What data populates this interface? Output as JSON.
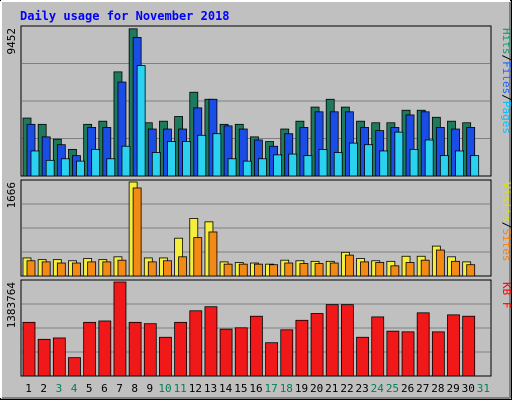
{
  "chart_data": {
    "type": "bar",
    "title": "Daily usage for November 2018",
    "categories": [
      "1",
      "2",
      "3",
      "4",
      "5",
      "6",
      "7",
      "8",
      "9",
      "10",
      "11",
      "12",
      "13",
      "14",
      "15",
      "16",
      "17",
      "18",
      "19",
      "20",
      "21",
      "22",
      "23",
      "24",
      "25",
      "26",
      "27",
      "28",
      "29",
      "30",
      "31"
    ],
    "weekend_days": [
      "3",
      "4",
      "10",
      "11",
      "17",
      "18",
      "24",
      "25",
      "31"
    ],
    "panels": [
      {
        "id": "hits",
        "max_label": "9452",
        "ylim": [
          0,
          9452
        ],
        "legend": [
          {
            "text": "Pages",
            "color": "#00c0ff"
          },
          {
            "text": "Files",
            "color": "#2060ff"
          },
          {
            "text": "Hits",
            "color": "#00a070"
          }
        ],
        "series": [
          {
            "name": "Hits",
            "color": "#1e7a5e",
            "values": [
              3700,
              3300,
              2350,
              1700,
              3300,
              3500,
              6650,
              9400,
              3400,
              3500,
              3800,
              5350,
              4900,
              3300,
              3300,
              2500,
              2200,
              3000,
              3500,
              4400,
              4900,
              4400,
              3500,
              3400,
              3400,
              4200,
              4200,
              3750,
              3500,
              3400,
              null
            ]
          },
          {
            "name": "Files",
            "color": "#1a4ce6",
            "values": [
              3300,
              2500,
              2000,
              1300,
              3100,
              3100,
              6000,
              8850,
              3000,
              3000,
              3000,
              4350,
              4900,
              3200,
              3000,
              2300,
              1900,
              2700,
              3100,
              4100,
              4100,
              4100,
              3100,
              2900,
              3100,
              3900,
              4100,
              3100,
              3000,
              3100,
              null
            ]
          },
          {
            "name": "Pages",
            "color": "#2ad2f0",
            "values": [
              1600,
              1000,
              1100,
              950,
              1700,
              1100,
              1900,
              7050,
              1500,
              2200,
              2200,
              2600,
              2700,
              1100,
              950,
              1100,
              1350,
              1400,
              1300,
              1700,
              1500,
              2100,
              2000,
              1600,
              2800,
              1700,
              2300,
              1300,
              1600,
              1300,
              null
            ]
          }
        ]
      },
      {
        "id": "visits",
        "max_label": "1666",
        "ylim": [
          0,
          1666
        ],
        "legend": [
          {
            "text": "Sites",
            "color": "#ff8000"
          },
          {
            "text": "Visits",
            "color": "#e0e000"
          }
        ],
        "series": [
          {
            "name": "Visits",
            "color": "#f4ef3c",
            "values": [
              320,
              290,
              290,
              270,
              310,
              290,
              340,
              1666,
              320,
              320,
              670,
              1020,
              960,
              250,
              240,
              230,
              210,
              280,
              270,
              260,
              260,
              420,
              310,
              270,
              260,
              350,
              350,
              530,
              340,
              250,
              null
            ]
          },
          {
            "name": "Sites",
            "color": "#f48a16",
            "values": [
              270,
              250,
              230,
              230,
              250,
              250,
              280,
              1560,
              250,
              270,
              340,
              680,
              780,
              210,
              210,
              210,
              200,
              230,
              220,
              220,
              230,
              370,
              250,
              240,
              180,
              240,
              280,
              460,
              260,
              200,
              null
            ]
          }
        ]
      },
      {
        "id": "kbytes",
        "max_label": "1383764",
        "ylim": [
          0,
          1383764
        ],
        "legend": [
          {
            "text": "KB F",
            "color": "#ff0000"
          }
        ],
        "series": [
          {
            "name": "KB F",
            "color": "#f01818",
            "values": [
              790000,
              540000,
              560000,
              270000,
              790000,
              810000,
              1383764,
              790000,
              770000,
              570000,
              790000,
              960000,
              1020000,
              690000,
              710000,
              880000,
              490000,
              680000,
              820000,
              920000,
              1050000,
              1050000,
              570000,
              870000,
              660000,
              650000,
              930000,
              650000,
              900000,
              880000,
              null
            ]
          }
        ]
      }
    ],
    "grid": true,
    "legend_position": "right-vertical"
  }
}
